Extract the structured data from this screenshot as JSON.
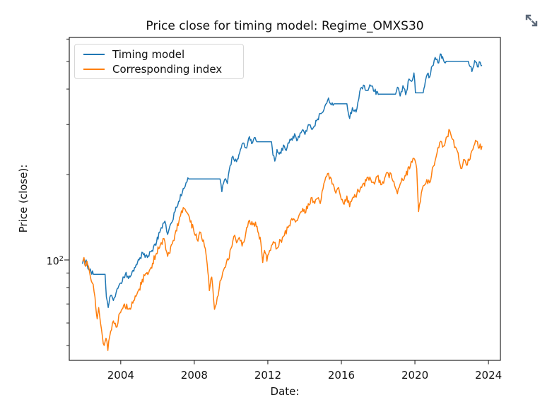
{
  "figure": {
    "background": "#ffffff"
  },
  "expand_button": {
    "icon": "expand-diagonal-arrows-icon",
    "color": "#5c6878"
  },
  "chart_data": {
    "type": "line",
    "title": "Price close for timing model: Regime_OMXS30",
    "xlabel": "Date:",
    "ylabel": "Price (close):",
    "yscale": "log",
    "grid": false,
    "xlim": [
      2001.2,
      2024.65
    ],
    "ylim": [
      44.3,
      608
    ],
    "xticks": [
      2004,
      2008,
      2012,
      2016,
      2020,
      2024
    ],
    "ytick_major": {
      "value": 100,
      "base": "10",
      "exponent": "2"
    },
    "yticks_minor": [
      50,
      60,
      70,
      80,
      90,
      200,
      300,
      400,
      500,
      600
    ],
    "legend": {
      "position": "upper-left"
    },
    "series": [
      {
        "name": "Timing model",
        "color": "#1f77b4",
        "points": [
          [
            2001.92,
            97
          ],
          [
            2001.98,
            101
          ],
          [
            2002.05,
            96
          ],
          [
            2002.12,
            100
          ],
          [
            2002.22,
            93
          ],
          [
            2002.38,
            91
          ],
          [
            2002.55,
            89
          ],
          [
            2003.15,
            89
          ],
          [
            2003.22,
            74
          ],
          [
            2003.32,
            68
          ],
          [
            2003.45,
            75
          ],
          [
            2003.6,
            72
          ],
          [
            2003.8,
            79
          ],
          [
            2004.0,
            83
          ],
          [
            2004.25,
            89
          ],
          [
            2004.5,
            87
          ],
          [
            2004.75,
            94
          ],
          [
            2005.0,
            100
          ],
          [
            2005.2,
            106
          ],
          [
            2005.45,
            102
          ],
          [
            2005.7,
            108
          ],
          [
            2005.95,
            116
          ],
          [
            2006.2,
            130
          ],
          [
            2006.4,
            137
          ],
          [
            2006.55,
            123
          ],
          [
            2006.75,
            135
          ],
          [
            2006.95,
            148
          ],
          [
            2007.15,
            161
          ],
          [
            2007.35,
            173
          ],
          [
            2007.55,
            187
          ],
          [
            2007.7,
            193
          ],
          [
            2009.4,
            193
          ],
          [
            2009.5,
            174
          ],
          [
            2009.65,
            192
          ],
          [
            2009.8,
            186
          ],
          [
            2009.95,
            215
          ],
          [
            2010.1,
            232
          ],
          [
            2010.3,
            222
          ],
          [
            2010.55,
            248
          ],
          [
            2010.7,
            258
          ],
          [
            2010.85,
            248
          ],
          [
            2011.0,
            272
          ],
          [
            2011.12,
            257
          ],
          [
            2011.27,
            270
          ],
          [
            2011.4,
            261
          ],
          [
            2012.2,
            261
          ],
          [
            2012.28,
            234
          ],
          [
            2012.38,
            223
          ],
          [
            2012.5,
            245
          ],
          [
            2012.62,
            236
          ],
          [
            2012.9,
            252
          ],
          [
            2013.0,
            243
          ],
          [
            2013.2,
            266
          ],
          [
            2013.5,
            274
          ],
          [
            2013.62,
            265
          ],
          [
            2013.9,
            288
          ],
          [
            2014.02,
            277
          ],
          [
            2014.25,
            299
          ],
          [
            2014.4,
            288
          ],
          [
            2014.7,
            314
          ],
          [
            2014.9,
            328
          ],
          [
            2015.1,
            348
          ],
          [
            2015.3,
            372
          ],
          [
            2015.45,
            352
          ],
          [
            2015.6,
            355
          ],
          [
            2016.3,
            355
          ],
          [
            2016.45,
            315
          ],
          [
            2016.6,
            344
          ],
          [
            2016.8,
            332
          ],
          [
            2017.0,
            392
          ],
          [
            2017.2,
            413
          ],
          [
            2017.4,
            396
          ],
          [
            2017.6,
            410
          ],
          [
            2017.8,
            393
          ],
          [
            2018.05,
            384
          ],
          [
            2018.95,
            384
          ],
          [
            2019.05,
            406
          ],
          [
            2019.2,
            378
          ],
          [
            2019.35,
            411
          ],
          [
            2019.5,
            382
          ],
          [
            2019.68,
            434
          ],
          [
            2019.82,
            426
          ],
          [
            2019.95,
            456
          ],
          [
            2020.03,
            388
          ],
          [
            2020.45,
            388
          ],
          [
            2020.57,
            428
          ],
          [
            2020.68,
            452
          ],
          [
            2020.8,
            441
          ],
          [
            2020.95,
            483
          ],
          [
            2021.1,
            517
          ],
          [
            2021.25,
            495
          ],
          [
            2021.42,
            531
          ],
          [
            2021.55,
            506
          ],
          [
            2021.7,
            501
          ],
          [
            2022.9,
            501
          ],
          [
            2023.0,
            480
          ],
          [
            2023.1,
            461
          ],
          [
            2023.25,
            504
          ],
          [
            2023.4,
            479
          ],
          [
            2023.55,
            497
          ],
          [
            2023.65,
            485
          ]
        ]
      },
      {
        "name": "Corresponding index",
        "color": "#ff7f0e",
        "points": [
          [
            2001.92,
            99
          ],
          [
            2002.0,
            102
          ],
          [
            2002.08,
            95
          ],
          [
            2002.16,
            99
          ],
          [
            2002.3,
            91
          ],
          [
            2002.45,
            83
          ],
          [
            2002.6,
            74
          ],
          [
            2002.72,
            62
          ],
          [
            2002.8,
            68
          ],
          [
            2002.9,
            60
          ],
          [
            2003.0,
            54
          ],
          [
            2003.1,
            50
          ],
          [
            2003.2,
            53
          ],
          [
            2003.3,
            48
          ],
          [
            2003.45,
            56
          ],
          [
            2003.6,
            61
          ],
          [
            2003.75,
            58
          ],
          [
            2003.95,
            65
          ],
          [
            2004.2,
            70
          ],
          [
            2004.45,
            67
          ],
          [
            2004.7,
            72
          ],
          [
            2005.0,
            79
          ],
          [
            2005.3,
            88
          ],
          [
            2005.6,
            93
          ],
          [
            2005.9,
            104
          ],
          [
            2006.15,
            113
          ],
          [
            2006.35,
            119
          ],
          [
            2006.55,
            103
          ],
          [
            2006.8,
            114
          ],
          [
            2007.0,
            127
          ],
          [
            2007.25,
            143
          ],
          [
            2007.45,
            152
          ],
          [
            2007.6,
            147
          ],
          [
            2007.78,
            136
          ],
          [
            2007.95,
            129
          ],
          [
            2008.15,
            118
          ],
          [
            2008.35,
            125
          ],
          [
            2008.55,
            112
          ],
          [
            2008.7,
            97
          ],
          [
            2008.82,
            78
          ],
          [
            2008.95,
            87
          ],
          [
            2009.1,
            67
          ],
          [
            2009.25,
            74
          ],
          [
            2009.45,
            85
          ],
          [
            2009.65,
            94
          ],
          [
            2009.85,
            100
          ],
          [
            2010.0,
            110
          ],
          [
            2010.15,
            121
          ],
          [
            2010.3,
            115
          ],
          [
            2010.45,
            120
          ],
          [
            2010.6,
            112
          ],
          [
            2010.8,
            124
          ],
          [
            2011.0,
            138
          ],
          [
            2011.18,
            133
          ],
          [
            2011.33,
            136
          ],
          [
            2011.5,
            124
          ],
          [
            2011.62,
            115
          ],
          [
            2011.72,
            98
          ],
          [
            2011.82,
            108
          ],
          [
            2011.95,
            99
          ],
          [
            2012.1,
            108
          ],
          [
            2012.3,
            116
          ],
          [
            2012.5,
            110
          ],
          [
            2012.7,
            117
          ],
          [
            2012.9,
            122
          ],
          [
            2013.1,
            130
          ],
          [
            2013.3,
            140
          ],
          [
            2013.5,
            136
          ],
          [
            2013.7,
            144
          ],
          [
            2013.9,
            152
          ],
          [
            2014.02,
            146
          ],
          [
            2014.2,
            158
          ],
          [
            2014.4,
            166
          ],
          [
            2014.55,
            158
          ],
          [
            2014.7,
            165
          ],
          [
            2014.85,
            158
          ],
          [
            2015.0,
            178
          ],
          [
            2015.15,
            196
          ],
          [
            2015.3,
            202
          ],
          [
            2015.5,
            185
          ],
          [
            2015.7,
            172
          ],
          [
            2015.85,
            180
          ],
          [
            2016.0,
            163
          ],
          [
            2016.15,
            157
          ],
          [
            2016.3,
            168
          ],
          [
            2016.45,
            154
          ],
          [
            2016.6,
            165
          ],
          [
            2016.85,
            172
          ],
          [
            2017.1,
            180
          ],
          [
            2017.35,
            190
          ],
          [
            2017.55,
            196
          ],
          [
            2017.75,
            188
          ],
          [
            2017.95,
            197
          ],
          [
            2018.15,
            184
          ],
          [
            2018.35,
            194
          ],
          [
            2018.55,
            202
          ],
          [
            2018.75,
            194
          ],
          [
            2018.95,
            179
          ],
          [
            2019.05,
            171
          ],
          [
            2019.25,
            188
          ],
          [
            2019.5,
            198
          ],
          [
            2019.75,
            214
          ],
          [
            2019.95,
            228
          ],
          [
            2020.1,
            210
          ],
          [
            2020.2,
            148
          ],
          [
            2020.35,
            172
          ],
          [
            2020.5,
            183
          ],
          [
            2020.65,
            192
          ],
          [
            2020.8,
            187
          ],
          [
            2021.0,
            214
          ],
          [
            2021.2,
            238
          ],
          [
            2021.4,
            262
          ],
          [
            2021.55,
            252
          ],
          [
            2021.7,
            270
          ],
          [
            2021.9,
            285
          ],
          [
            2022.05,
            266
          ],
          [
            2022.2,
            250
          ],
          [
            2022.35,
            238
          ],
          [
            2022.5,
            210
          ],
          [
            2022.65,
            226
          ],
          [
            2022.85,
            216
          ],
          [
            2023.05,
            238
          ],
          [
            2023.2,
            252
          ],
          [
            2023.35,
            262
          ],
          [
            2023.5,
            248
          ],
          [
            2023.65,
            252
          ]
        ]
      }
    ]
  }
}
